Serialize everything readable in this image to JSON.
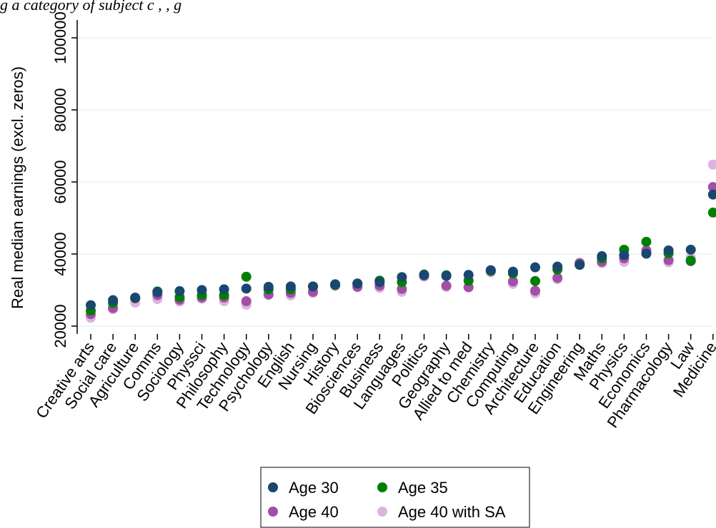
{
  "header": {
    "text": "g                                  a category of subject    c                                 ,  , g"
  },
  "colors": {
    "age30": "#1a476f",
    "age35": "#008000",
    "age40": "#a34ea8",
    "age40sa": "#dbb4df",
    "grid": "#eaf2f3"
  },
  "chart_data": {
    "type": "scatter",
    "title": "",
    "xlabel": "",
    "ylabel": "Real median earnings (excl. zeros)",
    "ylim": [
      18500,
      104000
    ],
    "yticks": [
      20000,
      40000,
      60000,
      80000,
      100000
    ],
    "grid": true,
    "legend_position": "bottom",
    "categories": [
      "Creative arts",
      "Social care",
      "Agriculture",
      "Comms",
      "Sociology",
      "Physsci",
      "Philosophy",
      "Technology",
      "Psychology",
      "English",
      "Nursing",
      "History",
      "Biosciences",
      "Business",
      "Languages",
      "Politics",
      "Geography",
      "Allied to med",
      "Chemistry",
      "Computing",
      "Architecture",
      "Education",
      "Engineering",
      "Maths",
      "Physics",
      "Economics",
      "Pharmacology",
      "Law",
      "Medicine"
    ],
    "series": [
      {
        "name": "Age 30",
        "color": "#1a476f",
        "values": [
          25800,
          27200,
          27900,
          29400,
          29700,
          30000,
          30200,
          30400,
          30900,
          31000,
          31000,
          31600,
          31800,
          32200,
          33600,
          34200,
          33900,
          34200,
          35500,
          35100,
          36300,
          36500,
          37000,
          39400,
          39700,
          40100,
          41000,
          41200,
          56500
        ]
      },
      {
        "name": "Age 35",
        "color": "#008000",
        "values": [
          24300,
          26400,
          27800,
          29600,
          28000,
          28600,
          28600,
          33700,
          30200,
          30200,
          31000,
          31400,
          31800,
          32600,
          32200,
          34300,
          34100,
          32600,
          35300,
          34600,
          32500,
          35700,
          37000,
          38800,
          41200,
          43400,
          40200,
          38200,
          51500
        ]
      },
      {
        "name": "Age 40",
        "color": "#a34ea8",
        "values": [
          23300,
          25000,
          27700,
          28600,
          27300,
          27900,
          27900,
          26900,
          28800,
          29200,
          29500,
          31400,
          30900,
          31200,
          30300,
          34000,
          31200,
          30800,
          35400,
          32400,
          29800,
          33400,
          37500,
          37800,
          38800,
          41000,
          38300,
          38000,
          58600
        ]
      },
      {
        "name": "Age 40 with SA",
        "color": "#dbb4df",
        "values": [
          22300,
          24700,
          26500,
          27500,
          26800,
          27600,
          26900,
          25900,
          28600,
          28500,
          29200,
          31100,
          30800,
          30600,
          29500,
          33700,
          30900,
          30700,
          34900,
          31700,
          29100,
          33000,
          37000,
          37500,
          37800,
          40500,
          37700,
          39000,
          64800
        ]
      }
    ]
  }
}
